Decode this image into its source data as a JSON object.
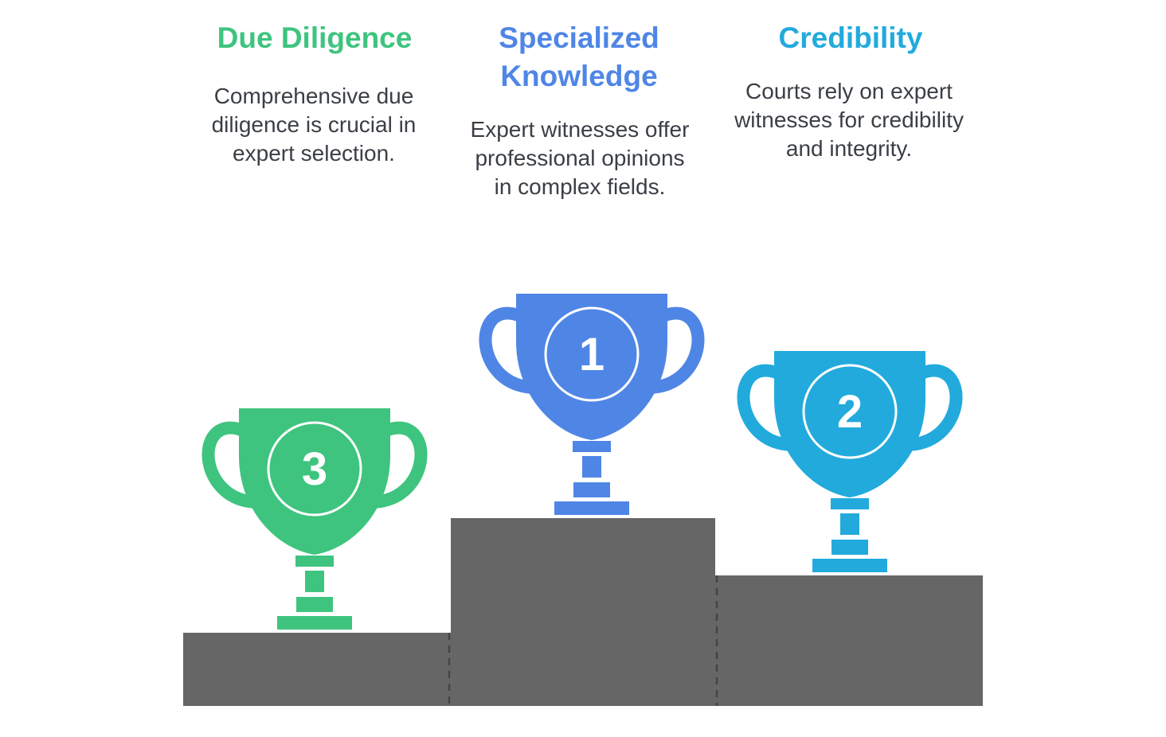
{
  "colors": {
    "first": "#4f86e6",
    "second": "#22aadc",
    "third": "#3ec47e",
    "podium": "#666666"
  },
  "places": {
    "first": {
      "rank": "1",
      "title_line1": "Specialized",
      "title_line2": "Knowledge",
      "description": "Expert witnesses offer professional opinions in complex fields.",
      "icon": "trophy-icon"
    },
    "second": {
      "rank": "2",
      "title": "Credibility",
      "description": "Courts rely on expert witnesses for credibility and integrity.",
      "icon": "trophy-icon"
    },
    "third": {
      "rank": "3",
      "title": "Due Diligence",
      "description": "Comprehensive due diligence is crucial in expert selection.",
      "icon": "trophy-icon"
    }
  }
}
